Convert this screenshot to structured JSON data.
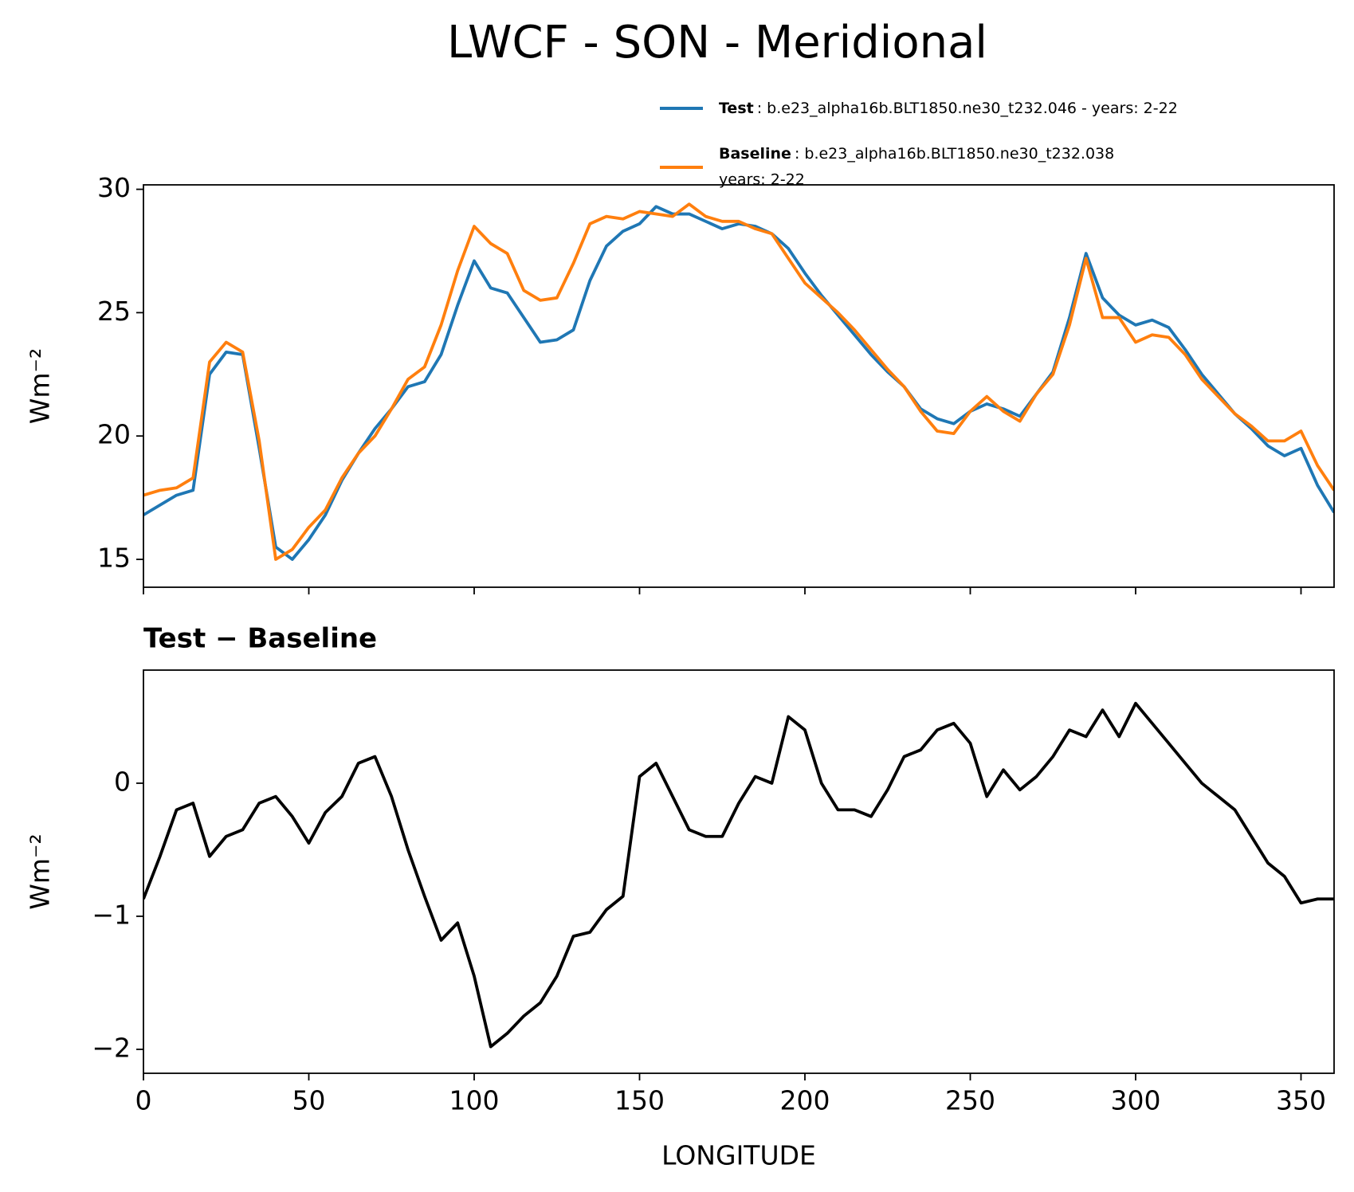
{
  "title": "LWCF - SON - Meridional",
  "chart_data": [
    {
      "type": "line",
      "ylabel": "Wm⁻²",
      "x": [
        0,
        5,
        10,
        15,
        20,
        25,
        30,
        35,
        40,
        45,
        50,
        55,
        60,
        65,
        70,
        75,
        80,
        85,
        90,
        95,
        100,
        105,
        110,
        115,
        120,
        125,
        130,
        135,
        140,
        145,
        150,
        155,
        160,
        165,
        170,
        175,
        180,
        185,
        190,
        195,
        200,
        205,
        210,
        215,
        220,
        225,
        230,
        235,
        240,
        245,
        250,
        255,
        260,
        265,
        270,
        275,
        280,
        285,
        290,
        295,
        300,
        305,
        310,
        315,
        320,
        325,
        330,
        335,
        340,
        345,
        350,
        355,
        360
      ],
      "series": [
        {
          "name": "Test",
          "color": "#1f77b4",
          "description": [
            ": b.e23_alpha16b.BLT1850.ne30_t232.046 - years: 2-22"
          ],
          "values": [
            16.8,
            17.2,
            17.6,
            17.8,
            22.5,
            23.4,
            23.3,
            19.5,
            15.5,
            15.0,
            15.8,
            16.8,
            18.2,
            19.3,
            20.3,
            21.1,
            22.0,
            22.2,
            23.3,
            25.3,
            27.1,
            26.0,
            25.8,
            24.8,
            23.8,
            23.9,
            24.3,
            26.3,
            27.7,
            28.3,
            28.6,
            29.3,
            29.0,
            29.0,
            28.7,
            28.4,
            28.6,
            28.5,
            28.2,
            27.6,
            26.6,
            25.7,
            24.9,
            24.1,
            23.3,
            22.6,
            22.0,
            21.1,
            20.7,
            20.5,
            21.0,
            21.3,
            21.1,
            20.8,
            21.7,
            22.6,
            24.8,
            27.4,
            25.6,
            24.9,
            24.5,
            24.7,
            24.4,
            23.5,
            22.5,
            21.7,
            20.9,
            20.3,
            19.6,
            19.2,
            19.5,
            18.0,
            16.9
          ]
        },
        {
          "name": "Baseline",
          "color": "#ff7f0e",
          "description": [
            ": b.e23_alpha16b.BLT1850.ne30_t232.038",
            "years: 2-22"
          ],
          "values": [
            17.6,
            17.8,
            17.9,
            18.3,
            23.0,
            23.8,
            23.4,
            19.8,
            15.0,
            15.4,
            16.3,
            17.0,
            18.3,
            19.3,
            20.0,
            21.1,
            22.3,
            22.8,
            24.5,
            26.7,
            28.5,
            27.8,
            27.4,
            25.9,
            25.5,
            25.6,
            27.0,
            28.6,
            28.9,
            28.8,
            29.1,
            29.0,
            28.9,
            29.4,
            28.9,
            28.7,
            28.7,
            28.4,
            28.2,
            27.2,
            26.2,
            25.6,
            25.0,
            24.3,
            23.5,
            22.7,
            22.0,
            21.0,
            20.2,
            20.1,
            21.0,
            21.6,
            21.0,
            20.6,
            21.7,
            22.5,
            24.5,
            27.2,
            24.8,
            24.8,
            23.8,
            24.1,
            24.0,
            23.3,
            22.3,
            21.6,
            20.9,
            20.4,
            19.8,
            19.8,
            20.2,
            18.8,
            17.8
          ]
        }
      ],
      "xlim": [
        0,
        360
      ],
      "xticks": [
        0,
        50,
        100,
        150,
        200,
        250,
        300,
        350
      ],
      "ylim": [
        13.87,
        30.18
      ],
      "yticks": [
        15,
        20,
        25,
        30
      ]
    },
    {
      "type": "line",
      "title": "Test − Baseline",
      "xlabel": "LONGITUDE",
      "ylabel": "Wm⁻²",
      "x": [
        0,
        5,
        10,
        15,
        20,
        25,
        30,
        35,
        40,
        45,
        50,
        55,
        60,
        65,
        70,
        75,
        80,
        85,
        90,
        95,
        100,
        105,
        110,
        115,
        120,
        125,
        130,
        135,
        140,
        145,
        150,
        155,
        160,
        165,
        170,
        175,
        180,
        185,
        190,
        195,
        200,
        205,
        210,
        215,
        220,
        225,
        230,
        235,
        240,
        245,
        250,
        255,
        260,
        265,
        270,
        275,
        280,
        285,
        290,
        295,
        300,
        305,
        310,
        315,
        320,
        325,
        330,
        335,
        340,
        345,
        350,
        355,
        360
      ],
      "series": [
        {
          "color": "#000000",
          "values": [
            -0.87,
            -0.55,
            -0.2,
            -0.15,
            -0.55,
            -0.4,
            -0.35,
            -0.15,
            -0.1,
            -0.25,
            -0.45,
            -0.22,
            -0.1,
            0.15,
            0.2,
            -0.1,
            -0.5,
            -0.85,
            -1.18,
            -1.05,
            -1.45,
            -1.98,
            -1.88,
            -1.75,
            -1.65,
            -1.45,
            -1.15,
            -1.12,
            -0.95,
            -0.85,
            0.05,
            0.15,
            -0.1,
            -0.35,
            -0.4,
            -0.4,
            -0.15,
            0.05,
            0.0,
            0.5,
            0.4,
            0.0,
            -0.2,
            -0.2,
            -0.25,
            -0.05,
            0.2,
            0.25,
            0.4,
            0.45,
            0.3,
            -0.1,
            0.1,
            -0.05,
            0.05,
            0.2,
            0.4,
            0.35,
            0.55,
            0.35,
            0.6,
            0.45,
            0.3,
            0.15,
            0.0,
            -0.1,
            -0.2,
            -0.4,
            -0.6,
            -0.7,
            -0.9,
            -0.87,
            -0.87
          ]
        }
      ],
      "xlim": [
        0,
        360
      ],
      "xticks": [
        0,
        50,
        100,
        150,
        200,
        250,
        300,
        350
      ],
      "ylim": [
        -2.18,
        0.85
      ],
      "yticks": [
        {
          "value": -2,
          "label": "−2"
        },
        {
          "value": -1,
          "label": "−1"
        },
        0
      ]
    }
  ]
}
